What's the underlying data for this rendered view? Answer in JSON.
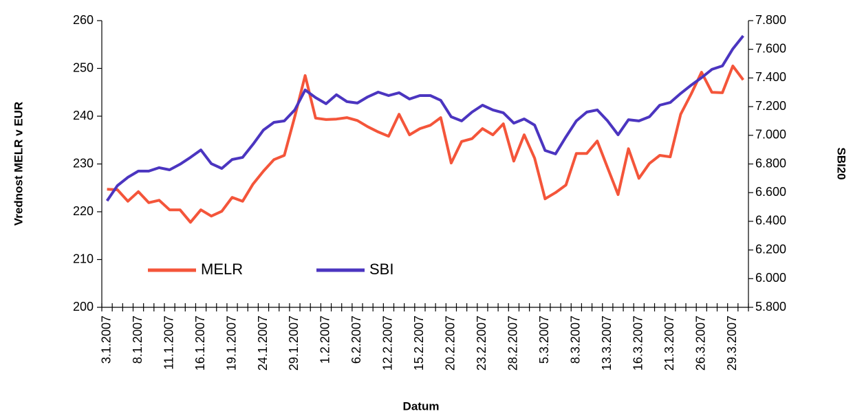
{
  "chart_data": {
    "type": "line",
    "xlabel": "Datum",
    "ylabel": "Vrednost MELR v EUR",
    "y2label": "SBI20",
    "legend": "lower left",
    "grid": false,
    "categories": [
      "3.1.2007",
      null,
      null,
      "8.1.2007",
      null,
      null,
      "11.1.2007",
      null,
      null,
      "16.1.2007",
      null,
      null,
      "19.1.2007",
      null,
      null,
      "24.1.2007",
      null,
      null,
      "29.1.2007",
      null,
      null,
      "1.2.2007",
      null,
      null,
      "6.2.2007",
      null,
      null,
      "12.2.2007",
      null,
      null,
      "15.2.2007",
      null,
      null,
      "20.2.2007",
      null,
      null,
      "23.2.2007",
      null,
      null,
      "28.2.2007",
      null,
      null,
      "5.3.2007",
      null,
      null,
      "8.3.2007",
      null,
      null,
      "13.3.2007",
      null,
      null,
      "16.3.2007",
      null,
      null,
      "21.3.2007",
      null,
      null,
      "26.3.2007",
      null,
      null,
      "29.3.2007",
      null
    ],
    "ylim": [
      200,
      260
    ],
    "yticks": [
      200,
      210,
      220,
      230,
      240,
      250,
      260
    ],
    "y2lim": [
      5800,
      7800
    ],
    "y2ticks": [
      {
        "value": 5800,
        "label": "5.800"
      },
      {
        "value": 6000,
        "label": "6.000"
      },
      {
        "value": 6200,
        "label": "6.200"
      },
      {
        "value": 6400,
        "label": "6.400"
      },
      {
        "value": 6600,
        "label": "6.600"
      },
      {
        "value": 6800,
        "label": "6.800"
      },
      {
        "value": 7000,
        "label": "7.000"
      },
      {
        "value": 7200,
        "label": "7.200"
      },
      {
        "value": 7400,
        "label": "7.400"
      },
      {
        "value": 7600,
        "label": "7.600"
      },
      {
        "value": 7800,
        "label": "7.800"
      }
    ],
    "series": [
      {
        "name": "MELR",
        "color": "#f4553a",
        "values": [
          224.7,
          224.6,
          222.2,
          224.2,
          221.9,
          222.4,
          220.4,
          220.4,
          217.8,
          220.4,
          219.1,
          220.1,
          223.0,
          222.2,
          225.8,
          228.5,
          230.9,
          231.8,
          239.9,
          248.5,
          239.6,
          239.3,
          239.4,
          239.7,
          239.1,
          237.8,
          236.7,
          235.8,
          240.4,
          236.1,
          237.4,
          238.1,
          239.7,
          230.2,
          234.7,
          235.3,
          237.4,
          236.1,
          238.4,
          230.6,
          236.1,
          231.2,
          222.7,
          224.0,
          225.6,
          232.2,
          232.2,
          234.8,
          229.2,
          223.6,
          233.2,
          227.0,
          230.1,
          231.8,
          231.5,
          240.4,
          244.6,
          249.2,
          245.0,
          244.9,
          250.5,
          247.6
        ]
      },
      {
        "name": "SBI",
        "color": "#4b35c0",
        "axis": "y2",
        "values": [
          6543,
          6649,
          6707,
          6750,
          6750,
          6774,
          6759,
          6798,
          6846,
          6898,
          6802,
          6769,
          6831,
          6846,
          6937,
          7037,
          7090,
          7100,
          7177,
          7316,
          7263,
          7220,
          7283,
          7235,
          7225,
          7268,
          7301,
          7277,
          7297,
          7253,
          7277,
          7277,
          7244,
          7129,
          7100,
          7162,
          7210,
          7177,
          7157,
          7085,
          7114,
          7071,
          6894,
          6870,
          6989,
          7100,
          7162,
          7177,
          7100,
          7004,
          7109,
          7100,
          7129,
          7210,
          7229,
          7292,
          7349,
          7402,
          7460,
          7484,
          7603,
          7694
        ]
      }
    ]
  }
}
